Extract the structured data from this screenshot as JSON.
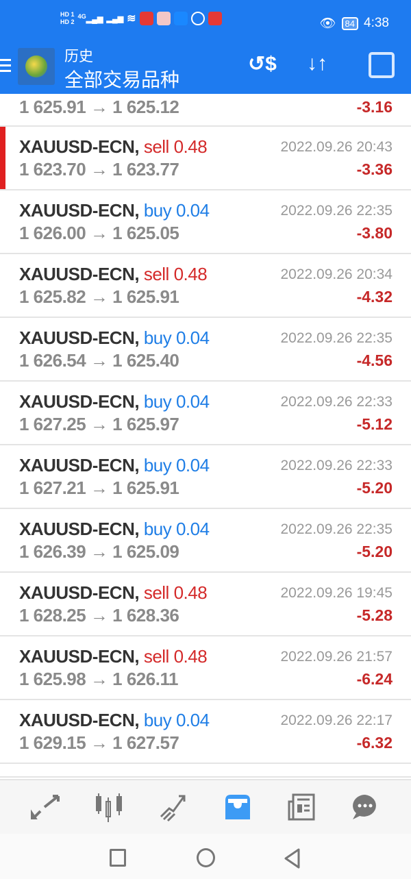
{
  "status_bar": {
    "time": "4:38",
    "battery": "84",
    "sim1": "HD 1",
    "sim2": "HD 2",
    "network": "4G"
  },
  "header": {
    "subtitle": "历史",
    "title": "全部交易品种",
    "icons": [
      "menu-icon",
      "mt4-logo",
      "exchange-dollar-icon",
      "sort-icon",
      "calendar-icon"
    ]
  },
  "first_row": {
    "prices": "1 625.91 → 1 625.12",
    "profit": "-3.16"
  },
  "rows": [
    {
      "symbol": "XAUUSD-ECN,",
      "side": "sell",
      "volume": "0.48",
      "time": "2022.09.26 20:43",
      "prices": "1 623.70 → 1 623.77",
      "profit": "-3.36",
      "selected": true
    },
    {
      "symbol": "XAUUSD-ECN,",
      "side": "buy",
      "volume": "0.04",
      "time": "2022.09.26 22:35",
      "prices": "1 626.00 → 1 625.05",
      "profit": "-3.80"
    },
    {
      "symbol": "XAUUSD-ECN,",
      "side": "sell",
      "volume": "0.48",
      "time": "2022.09.26 20:34",
      "prices": "1 625.82 → 1 625.91",
      "profit": "-4.32"
    },
    {
      "symbol": "XAUUSD-ECN,",
      "side": "buy",
      "volume": "0.04",
      "time": "2022.09.26 22:35",
      "prices": "1 626.54 → 1 625.40",
      "profit": "-4.56"
    },
    {
      "symbol": "XAUUSD-ECN,",
      "side": "buy",
      "volume": "0.04",
      "time": "2022.09.26 22:33",
      "prices": "1 627.25 → 1 625.97",
      "profit": "-5.12"
    },
    {
      "symbol": "XAUUSD-ECN,",
      "side": "buy",
      "volume": "0.04",
      "time": "2022.09.26 22:33",
      "prices": "1 627.21 → 1 625.91",
      "profit": "-5.20"
    },
    {
      "symbol": "XAUUSD-ECN,",
      "side": "buy",
      "volume": "0.04",
      "time": "2022.09.26 22:35",
      "prices": "1 626.39 → 1 625.09",
      "profit": "-5.20"
    },
    {
      "symbol": "XAUUSD-ECN,",
      "side": "sell",
      "volume": "0.48",
      "time": "2022.09.26 19:45",
      "prices": "1 628.25 → 1 628.36",
      "profit": "-5.28"
    },
    {
      "symbol": "XAUUSD-ECN,",
      "side": "sell",
      "volume": "0.48",
      "time": "2022.09.26 21:57",
      "prices": "1 625.98 → 1 626.11",
      "profit": "-6.24"
    },
    {
      "symbol": "XAUUSD-ECN,",
      "side": "buy",
      "volume": "0.04",
      "time": "2022.09.26 22:17",
      "prices": "1 629.15 → 1 627.57",
      "profit": "-6.32"
    }
  ],
  "bottom_nav": {
    "items": [
      "quotes",
      "charts",
      "trade",
      "history",
      "news",
      "chat"
    ],
    "active": "history"
  },
  "colors": {
    "accent": "#1e7bf0",
    "sell": "#d42a2a",
    "buy": "#1f7ee6",
    "loss": "#c62828",
    "active_nav": "#3d9bf5"
  }
}
